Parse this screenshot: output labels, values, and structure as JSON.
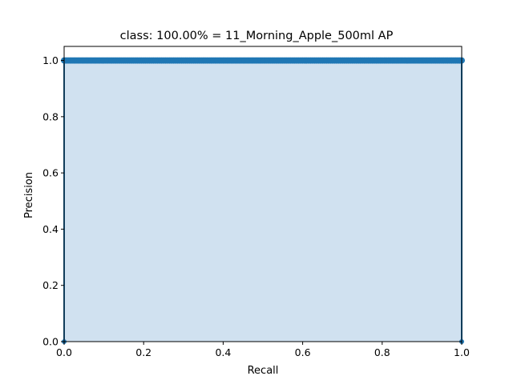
{
  "chart_data": {
    "type": "area",
    "title": "class: 100.00% = 11_Morning_Apple_500ml AP",
    "xlabel": "Recall",
    "ylabel": "Precision",
    "xlim": [
      0.0,
      1.0
    ],
    "ylim": [
      0.0,
      1.05
    ],
    "x_ticks": [
      "0.0",
      "0.2",
      "0.4",
      "0.6",
      "0.8",
      "1.0"
    ],
    "y_ticks": [
      "0.0",
      "0.2",
      "0.4",
      "0.6",
      "0.8",
      "1.0"
    ],
    "grid": false,
    "legend": "none",
    "series": [
      {
        "x": [
          0.0,
          0.0,
          1.0,
          1.0
        ],
        "y": [
          0.0,
          1.0,
          1.0,
          0.0
        ]
      }
    ],
    "colors": {
      "line": "#1f77b4",
      "fill": "#d0e1f0"
    }
  }
}
